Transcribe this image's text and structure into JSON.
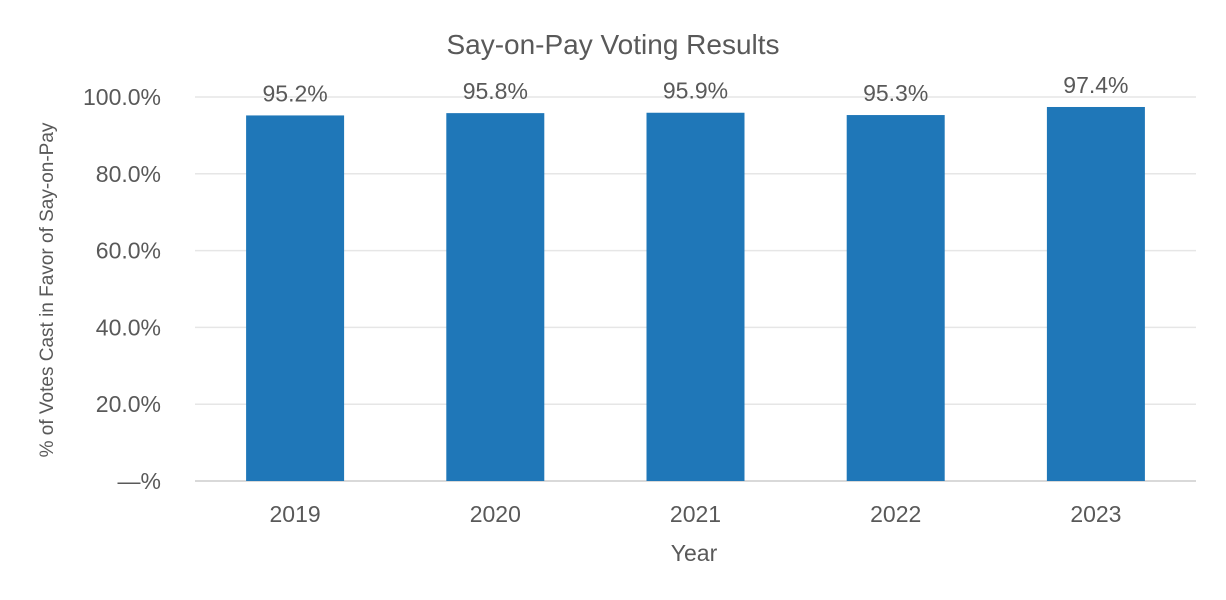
{
  "chart_data": {
    "type": "bar",
    "title": "Say-on-Pay Voting Results",
    "xlabel": "Year",
    "ylabel": "% of Votes Cast in Favor of Say-on-Pay",
    "categories": [
      "2019",
      "2020",
      "2021",
      "2022",
      "2023"
    ],
    "values": [
      95.2,
      95.8,
      95.9,
      95.3,
      97.4
    ],
    "value_labels": [
      "95.2%",
      "95.8%",
      "95.9%",
      "95.3%",
      "97.4%"
    ],
    "yticks": [
      0,
      20,
      40,
      60,
      80,
      100
    ],
    "ytick_labels": [
      "—%",
      "20.0%",
      "40.0%",
      "60.0%",
      "80.0%",
      "100.0%"
    ],
    "ylim": [
      0,
      100
    ],
    "grid": true,
    "legend": "none",
    "bar_color": "#1f77b8"
  }
}
